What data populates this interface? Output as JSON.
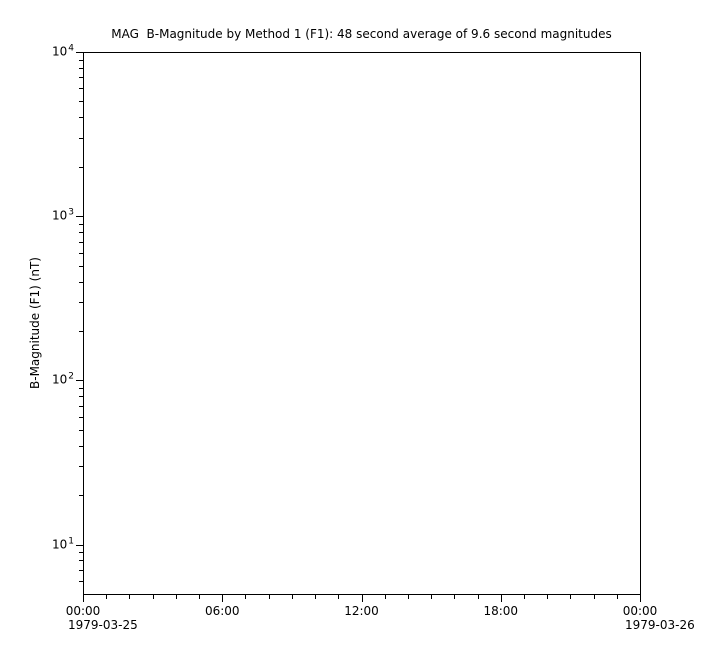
{
  "colors": {
    "background": "#ffffff",
    "axis": "#000000",
    "text": "#000000"
  },
  "chart_data": {
    "type": "line",
    "title": "MAG  B-Magnitude by Method 1 (F1): 48 second average of 9.6 second magnitudes",
    "xlabel": "",
    "ylabel": "B-Magnitude (F1) (nT)",
    "grid": false,
    "legend": null,
    "series": [],
    "x_axis": {
      "range_hours": [
        0,
        24
      ],
      "tick_hours": [
        0,
        6,
        12,
        18,
        24
      ],
      "tick_labels": [
        "00:00",
        "06:00",
        "12:00",
        "18:00",
        "00:00"
      ],
      "minor_tick_interval_hours": 1,
      "start_date": "1979-03-25",
      "end_date": "1979-03-26"
    },
    "y_axis": {
      "scale": "log",
      "ylim": [
        5,
        10000
      ],
      "major_ticks": [
        10,
        100,
        1000,
        10000
      ],
      "tick_exponents": [
        1,
        2,
        3,
        4
      ],
      "tick_base_label": "10",
      "unit": "nT"
    }
  }
}
